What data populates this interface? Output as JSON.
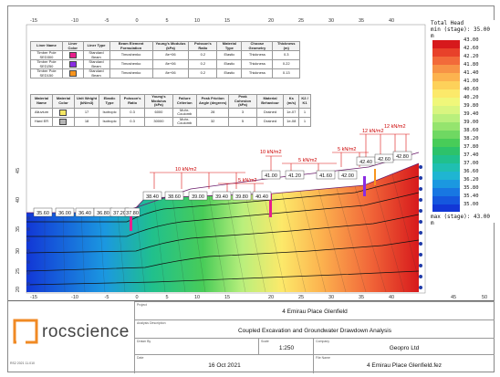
{
  "liner_table": {
    "headers": [
      "Liner Name",
      "Liner Color",
      "Liner Type",
      "Beam Element Formulation",
      "Young's Modulus (kPa)",
      "Poisson's Ratio",
      "Material Type",
      "Choose Geometry",
      "Thickness (m)"
    ],
    "rows": [
      {
        "name": "Timber Pole SED300",
        "color": "#e81e8c",
        "type": "Standard Beam",
        "form": "Timoshenko",
        "E": "8e+06",
        "nu": "0.2",
        "mat": "Elastic",
        "geom": "Thickness",
        "t": "0.3"
      },
      {
        "name": "Timber Pole SED250",
        "color": "#8a2be2",
        "type": "Standard Beam",
        "form": "Timoshenko",
        "E": "8e+06",
        "nu": "0.2",
        "mat": "Elastic",
        "geom": "Thickness",
        "t": "0.22"
      },
      {
        "name": "Timber Pole SED150",
        "color": "#f7941d",
        "type": "Standard Beam",
        "form": "Timoshenko",
        "E": "8e+06",
        "nu": "0.2",
        "mat": "Elastic",
        "geom": "Thickness",
        "t": "0.13"
      }
    ]
  },
  "material_table": {
    "headers": [
      "Material Name",
      "Material Color",
      "Unit Weight (kN/m3)",
      "Elastic Type",
      "Poisson's Ratio",
      "Young's Modulus (kPa)",
      "Failure Criterion",
      "Peak Friction Angle (degrees)",
      "Peak Cohesion (kPa)",
      "Material Behaviour",
      "Ks (m/s)",
      "K2 / K1"
    ],
    "rows": [
      {
        "name": "Alluvium",
        "color": "#f5e663",
        "uw": "17",
        "et": "Isotropic",
        "nu": "0.3",
        "E": "6000",
        "fc": "Mohr-Coulomb",
        "phi": "28",
        "c": "3",
        "mb": "Drained",
        "ks": "1e-07",
        "k": "1"
      },
      {
        "name": "Hard ER",
        "color": "#b5b5b5",
        "uw": "18",
        "et": "Isotropic",
        "nu": "0.3",
        "E": "30000",
        "fc": "Mohr-Coulomb",
        "phi": "32",
        "c": "5",
        "mb": "Drained",
        "ks": "1e-08",
        "k": "1"
      }
    ]
  },
  "legend": {
    "title": "Total Head",
    "min_label": "min (stage): 35.00 m",
    "max_label": "max (stage): 43.00 m",
    "ticks": [
      "43.00",
      "42.60",
      "42.20",
      "41.80",
      "41.40",
      "41.00",
      "40.60",
      "40.20",
      "39.80",
      "39.40",
      "39.00",
      "38.60",
      "38.20",
      "37.80",
      "37.40",
      "37.00",
      "36.60",
      "36.20",
      "35.80",
      "35.40",
      "35.00"
    ],
    "colors": [
      "#d7191c",
      "#e8412a",
      "#f26a3a",
      "#f79346",
      "#fcb34f",
      "#fdd15a",
      "#fce96a",
      "#f0f77a",
      "#d9f580",
      "#b9ef7c",
      "#95e46e",
      "#6fd862",
      "#48cc58",
      "#2dc26a",
      "#20c08d",
      "#1fbfb1",
      "#1fb5d2",
      "#1b98e0",
      "#1877e2",
      "#1557de",
      "#1237d6"
    ]
  },
  "head_labels": [
    "35.60",
    "36.00",
    "36.40",
    "36.80",
    "37.20",
    "37.80",
    "38.40",
    "38.60",
    "39.00",
    "39.40",
    "39.80",
    "40.40",
    "41.00",
    "41.20",
    "41.60",
    "42.00",
    "42.40",
    "42.60",
    "42.80"
  ],
  "loads": [
    "10 kN/m2",
    "5 kN/m2",
    "10 kN/m2",
    "5 kN/m2",
    "5 kN/m2",
    "12 kN/m2",
    "12 kN/m2"
  ],
  "x_ticks": [
    "-15",
    "-10",
    "-5",
    "0",
    "5",
    "10",
    "15",
    "20",
    "25",
    "30",
    "35",
    "40",
    "45",
    "50"
  ],
  "y_ticks": [
    "45",
    "40",
    "35",
    "30",
    "25",
    "20"
  ],
  "title_block": {
    "project_label": "Project",
    "project": "4 Emirau Place Glenfield",
    "analysis_label": "Analysis Description",
    "analysis": "Coupled Excavation and Groundwater Drawdown Analysis",
    "drawn_label": "Drawn By",
    "drawn": "",
    "scale_label": "Scale",
    "scale": "1:250",
    "company_label": "Company",
    "company": "Geopro Ltd",
    "date_label": "Date",
    "date": "16 Oct 2021",
    "file_label": "File Name",
    "file": "4 Emirau Place Glenfield.fez",
    "logo": "rocscience",
    "version": "RS2 2021 11.010"
  }
}
